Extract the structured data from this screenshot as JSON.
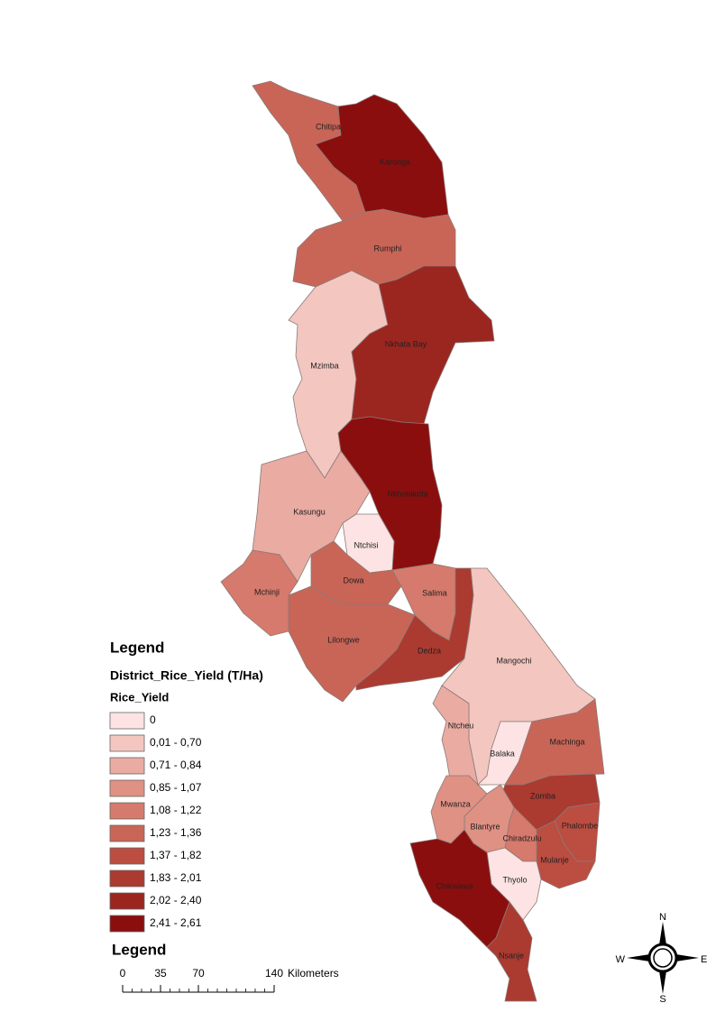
{
  "legend_title": "Legend",
  "layer_title": "District_Rice_Yield (T/Ha)",
  "field_name": "Rice_Yield",
  "classes": [
    {
      "label": "0",
      "color": "#fde3e3"
    },
    {
      "label": "0,01 - 0,70",
      "color": "#f3c6c0"
    },
    {
      "label": "0,71 - 0,84",
      "color": "#e9aba2"
    },
    {
      "label": "0,85 - 1,07",
      "color": "#df9184"
    },
    {
      "label": "1,08 - 1,22",
      "color": "#d57a6c"
    },
    {
      "label": "1,23 - 1,36",
      "color": "#c96557"
    },
    {
      "label": "1,37 - 1,82",
      "color": "#bc4d41"
    },
    {
      "label": "1,83 - 2,01",
      "color": "#ab3a30"
    },
    {
      "label": "2,02 - 2,40",
      "color": "#9b2620"
    },
    {
      "label": "2,41 - 2,61",
      "color": "#8b0e0e"
    }
  ],
  "districts": [
    {
      "name": "Chitipa",
      "color": "#c96557"
    },
    {
      "name": "Karonga",
      "color": "#8b0e0e"
    },
    {
      "name": "Rumphi",
      "color": "#c96557"
    },
    {
      "name": "Mzimba",
      "color": "#f3c6c0"
    },
    {
      "name": "Nkhata Bay",
      "color": "#9b2620"
    },
    {
      "name": "Nkhotakota",
      "color": "#8b0e0e"
    },
    {
      "name": "Kasungu",
      "color": "#e9aba2"
    },
    {
      "name": "Ntchisi",
      "color": "#fde3e3"
    },
    {
      "name": "Mchinji",
      "color": "#d57a6c"
    },
    {
      "name": "Dowa",
      "color": "#c96557"
    },
    {
      "name": "Salima",
      "color": "#d57a6c"
    },
    {
      "name": "Lilongwe",
      "color": "#c96557"
    },
    {
      "name": "Dedza",
      "color": "#ab3a30"
    },
    {
      "name": "Mangochi",
      "color": "#f3c6c0"
    },
    {
      "name": "Ntcheu",
      "color": "#e9aba2"
    },
    {
      "name": "Balaka",
      "color": "#fde3e3"
    },
    {
      "name": "Machinga",
      "color": "#c96557"
    },
    {
      "name": "Zomba",
      "color": "#ab3a30"
    },
    {
      "name": "Phalombe",
      "color": "#bc4d41"
    },
    {
      "name": "Mulanje",
      "color": "#bc4d41"
    },
    {
      "name": "Chiradzulu",
      "color": "#d57a6c"
    },
    {
      "name": "Blantyre",
      "color": "#df9184"
    },
    {
      "name": "Mwanza",
      "color": "#df9184"
    },
    {
      "name": "Thyolo",
      "color": "#fde3e3"
    },
    {
      "name": "Chikwawa",
      "color": "#8b0e0e"
    },
    {
      "name": "Nsanje",
      "color": "#ab3a30"
    }
  ],
  "scale_legend_title": "Legend",
  "scale_bar": {
    "ticks": [
      0,
      35,
      70,
      140
    ],
    "unit": "Kilometers"
  },
  "compass": {
    "north": "N",
    "east": "E",
    "south": "S",
    "west": "W"
  }
}
